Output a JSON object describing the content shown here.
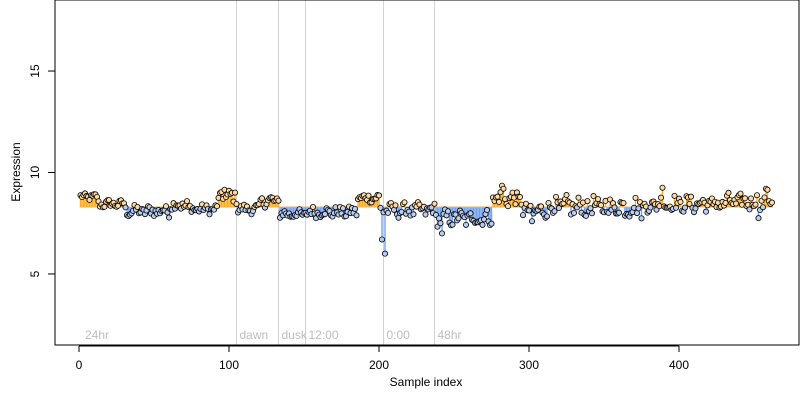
{
  "chart_data": {
    "type": "scatter",
    "xlabel": "Sample index",
    "ylabel": "Expression",
    "xlim": [
      -16,
      480
    ],
    "ylim": [
      1.5,
      18.5
    ],
    "x_ticks": [
      0,
      100,
      200,
      300,
      400
    ],
    "y_ticks": [
      5,
      10,
      15
    ],
    "baseline": 8.3,
    "grid": false,
    "legend": "none",
    "colors": {
      "above": "#ffa500",
      "below": "#6495ed",
      "point_stroke": "#000000",
      "phase_line": "#d3d3d3",
      "phase_label": "#bdbdbd"
    },
    "phase_markers": [
      {
        "label": "24hr",
        "x": 2,
        "line": false
      },
      {
        "label": "dawn",
        "x": 105,
        "line": true
      },
      {
        "label": "dusk",
        "x": 133,
        "line": true
      },
      {
        "label": "12:00",
        "x": 151,
        "line": true
      },
      {
        "label": "0:00",
        "x": 203,
        "line": true
      },
      {
        "label": "48hr",
        "x": 237,
        "line": true
      }
    ],
    "segments": [
      {
        "x_start": 1,
        "x_end": 12,
        "mean": 8.8,
        "spread": 0.15
      },
      {
        "x_start": 13,
        "x_end": 30,
        "mean": 8.45,
        "spread": 0.18
      },
      {
        "x_start": 31,
        "x_end": 60,
        "mean": 8.1,
        "spread": 0.25
      },
      {
        "x_start": 61,
        "x_end": 72,
        "mean": 8.4,
        "spread": 0.25
      },
      {
        "x_start": 73,
        "x_end": 92,
        "mean": 8.2,
        "spread": 0.2
      },
      {
        "x_start": 93,
        "x_end": 105,
        "mean": 8.8,
        "spread": 0.3
      },
      {
        "x_start": 106,
        "x_end": 120,
        "mean": 8.2,
        "spread": 0.2
      },
      {
        "x_start": 121,
        "x_end": 133,
        "mean": 8.6,
        "spread": 0.25
      },
      {
        "x_start": 134,
        "x_end": 151,
        "mean": 7.95,
        "spread": 0.2
      },
      {
        "x_start": 152,
        "x_end": 185,
        "mean": 8.05,
        "spread": 0.25
      },
      {
        "x_start": 186,
        "x_end": 200,
        "mean": 8.75,
        "spread": 0.2
      },
      {
        "x_start": 201,
        "x_end": 237,
        "mean": 8.15,
        "spread": 0.3
      },
      {
        "x_start": 238,
        "x_end": 275,
        "mean": 7.75,
        "spread": 0.35
      },
      {
        "x_start": 276,
        "x_end": 295,
        "mean": 8.7,
        "spread": 0.35
      },
      {
        "x_start": 296,
        "x_end": 310,
        "mean": 8.1,
        "spread": 0.3
      },
      {
        "x_start": 311,
        "x_end": 380,
        "mean": 8.3,
        "spread": 0.45
      },
      {
        "x_start": 381,
        "x_end": 430,
        "mean": 8.45,
        "spread": 0.35
      },
      {
        "x_start": 431,
        "x_end": 462,
        "mean": 8.55,
        "spread": 0.35
      }
    ],
    "points_override": [
      {
        "x": 97,
        "y": 9.15
      },
      {
        "x": 202,
        "y": 6.7
      },
      {
        "x": 204,
        "y": 6.0
      },
      {
        "x": 282,
        "y": 9.35
      },
      {
        "x": 283,
        "y": 9.2
      },
      {
        "x": 302,
        "y": 7.6
      },
      {
        "x": 389,
        "y": 9.25
      },
      {
        "x": 458,
        "y": 9.2
      },
      {
        "x": 459,
        "y": 9.15
      },
      {
        "x": 453,
        "y": 7.75
      },
      {
        "x": 242,
        "y": 7.0
      }
    ]
  }
}
